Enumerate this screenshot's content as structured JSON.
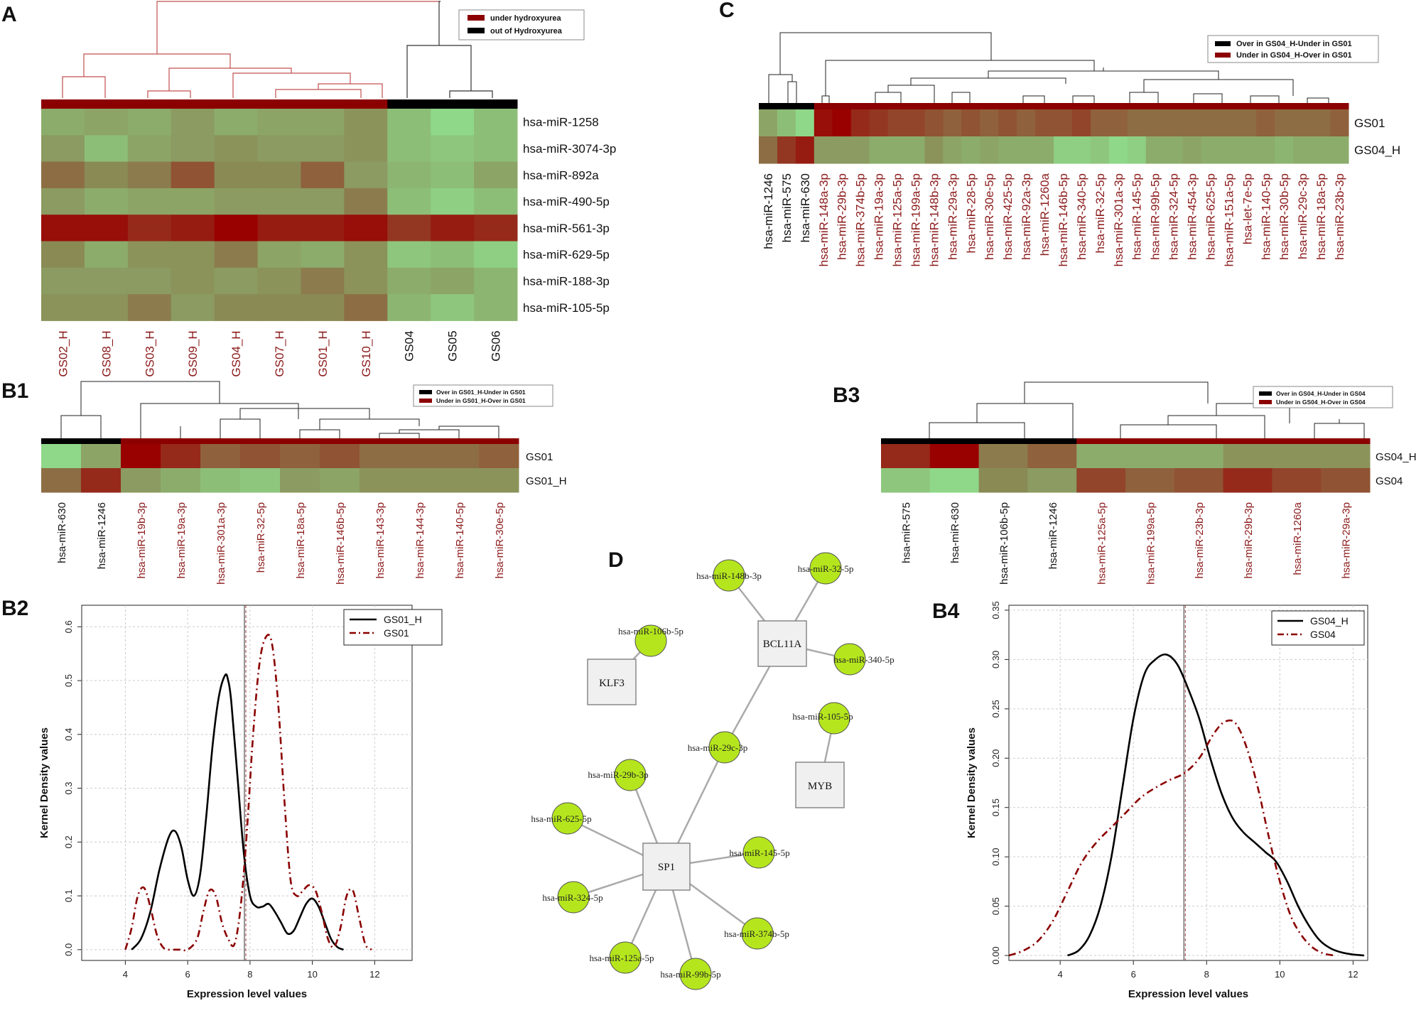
{
  "colors": {
    "dark_red": "#8b0000",
    "black": "#000000",
    "sample_red": "#8b1a1a",
    "node_green": "#b5e61d",
    "heat_low": "#8fe08f",
    "heat_mid": "#8a8a55",
    "heat_high": "#990000"
  },
  "panel_A": {
    "letter": "A",
    "legend": [
      "under hydroxyurea",
      "out of Hydroxyurea"
    ],
    "rows": [
      "hsa-miR-1258",
      "hsa-miR-3074-3p",
      "hsa-miR-892a",
      "hsa-miR-490-5p",
      "hsa-miR-561-3p",
      "hsa-miR-629-5p",
      "hsa-miR-188-3p",
      "hsa-miR-105-5p"
    ],
    "columns": [
      {
        "label": "GS02_H",
        "group": "red"
      },
      {
        "label": "GS08_H",
        "group": "red"
      },
      {
        "label": "GS03_H",
        "group": "red"
      },
      {
        "label": "GS09_H",
        "group": "red"
      },
      {
        "label": "GS04_H",
        "group": "red"
      },
      {
        "label": "GS07_H",
        "group": "red"
      },
      {
        "label": "GS01_H",
        "group": "red"
      },
      {
        "label": "GS10_H",
        "group": "red"
      },
      {
        "label": "GS04",
        "group": "black"
      },
      {
        "label": "GS05",
        "group": "black"
      },
      {
        "label": "GS06",
        "group": "black"
      }
    ],
    "values": [
      [
        0.3,
        0.35,
        0.3,
        0.4,
        0.3,
        0.35,
        0.35,
        0.45,
        0.2,
        0.05,
        0.2
      ],
      [
        0.4,
        0.2,
        0.35,
        0.4,
        0.45,
        0.4,
        0.4,
        0.45,
        0.2,
        0.15,
        0.2
      ],
      [
        0.6,
        0.5,
        0.55,
        0.7,
        0.5,
        0.5,
        0.65,
        0.4,
        0.25,
        0.2,
        0.35
      ],
      [
        0.4,
        0.3,
        0.35,
        0.35,
        0.4,
        0.4,
        0.4,
        0.55,
        0.2,
        0.1,
        0.2
      ],
      [
        0.95,
        0.95,
        0.85,
        0.9,
        1.0,
        0.9,
        0.9,
        0.95,
        0.8,
        0.9,
        0.85
      ],
      [
        0.5,
        0.3,
        0.45,
        0.45,
        0.55,
        0.35,
        0.3,
        0.45,
        0.15,
        0.2,
        0.1
      ],
      [
        0.4,
        0.4,
        0.4,
        0.45,
        0.4,
        0.45,
        0.55,
        0.45,
        0.3,
        0.35,
        0.25
      ],
      [
        0.45,
        0.45,
        0.55,
        0.4,
        0.5,
        0.5,
        0.5,
        0.6,
        0.25,
        0.15,
        0.25
      ]
    ]
  },
  "panel_B1": {
    "letter": "B1",
    "legend": [
      "Over in GS01_H-Under in GS01",
      "Under in GS01_H-Over in GS01"
    ],
    "rows": [
      "GS01",
      "GS01_H"
    ],
    "columns": [
      {
        "label": "hsa-miR-630",
        "group": "black"
      },
      {
        "label": "hsa-miR-1246",
        "group": "black"
      },
      {
        "label": "hsa-miR-19b-3p",
        "group": "red"
      },
      {
        "label": "hsa-miR-19a-3p",
        "group": "red"
      },
      {
        "label": "hsa-miR-301a-3p",
        "group": "red"
      },
      {
        "label": "hsa-miR-32-5p",
        "group": "red"
      },
      {
        "label": "hsa-miR-18a-5p",
        "group": "red"
      },
      {
        "label": "hsa-miR-146b-5p",
        "group": "red"
      },
      {
        "label": "hsa-miR-143-3p",
        "group": "red"
      },
      {
        "label": "hsa-miR-144-3p",
        "group": "red"
      },
      {
        "label": "hsa-miR-140-5p",
        "group": "red"
      },
      {
        "label": "hsa-miR-30e-5p",
        "group": "red"
      }
    ],
    "values": [
      [
        0.05,
        0.35,
        1.0,
        0.85,
        0.65,
        0.7,
        0.65,
        0.7,
        0.6,
        0.6,
        0.6,
        0.65
      ],
      [
        0.6,
        0.85,
        0.4,
        0.3,
        0.2,
        0.15,
        0.4,
        0.35,
        0.45,
        0.45,
        0.45,
        0.45
      ]
    ]
  },
  "panel_C": {
    "letter": "C",
    "legend": [
      "Over in GS04_H-Under in GS01",
      "Under in GS04_H-Over in GS01"
    ],
    "rows": [
      "GS01",
      "GS04_H"
    ],
    "columns": [
      {
        "label": "hsa-miR-1246",
        "group": "black"
      },
      {
        "label": "hsa-miR-575",
        "group": "black"
      },
      {
        "label": "hsa-miR-630",
        "group": "black"
      },
      {
        "label": "hsa-miR-148a-3p",
        "group": "red"
      },
      {
        "label": "hsa-miR-29b-3p",
        "group": "red"
      },
      {
        "label": "hsa-miR-374b-5p",
        "group": "red"
      },
      {
        "label": "hsa-miR-19a-3p",
        "group": "red"
      },
      {
        "label": "hsa-miR-125a-5p",
        "group": "red"
      },
      {
        "label": "hsa-miR-199a-5p",
        "group": "red"
      },
      {
        "label": "hsa-miR-148b-3p",
        "group": "red"
      },
      {
        "label": "hsa-miR-29a-3p",
        "group": "red"
      },
      {
        "label": "hsa-miR-28-5p",
        "group": "red"
      },
      {
        "label": "hsa-miR-30e-5p",
        "group": "red"
      },
      {
        "label": "hsa-miR-425-5p",
        "group": "red"
      },
      {
        "label": "hsa-miR-92a-3p",
        "group": "red"
      },
      {
        "label": "hsa-miR-1260a",
        "group": "red"
      },
      {
        "label": "hsa-miR-146b-5p",
        "group": "red"
      },
      {
        "label": "hsa-miR-340-5p",
        "group": "red"
      },
      {
        "label": "hsa-miR-32-5p",
        "group": "red"
      },
      {
        "label": "hsa-miR-301a-3p",
        "group": "red"
      },
      {
        "label": "hsa-miR-145-5p",
        "group": "red"
      },
      {
        "label": "hsa-miR-99b-5p",
        "group": "red"
      },
      {
        "label": "hsa-miR-324-5p",
        "group": "red"
      },
      {
        "label": "hsa-miR-454-3p",
        "group": "red"
      },
      {
        "label": "hsa-miR-625-5p",
        "group": "red"
      },
      {
        "label": "hsa-miR-151a-5p",
        "group": "red"
      },
      {
        "label": "hsa-let-7e-5p",
        "group": "red"
      },
      {
        "label": "hsa-miR-140-5p",
        "group": "red"
      },
      {
        "label": "hsa-miR-30b-5p",
        "group": "red"
      },
      {
        "label": "hsa-miR-29c-3p",
        "group": "red"
      },
      {
        "label": "hsa-miR-18a-5p",
        "group": "red"
      },
      {
        "label": "hsa-miR-23b-3p",
        "group": "red"
      }
    ],
    "values": [
      [
        0.35,
        0.2,
        0.05,
        0.95,
        1.0,
        0.85,
        0.8,
        0.75,
        0.75,
        0.7,
        0.65,
        0.7,
        0.65,
        0.7,
        0.65,
        0.7,
        0.7,
        0.75,
        0.65,
        0.65,
        0.6,
        0.6,
        0.6,
        0.6,
        0.6,
        0.6,
        0.6,
        0.65,
        0.6,
        0.6,
        0.6,
        0.65
      ],
      [
        0.6,
        0.8,
        0.9,
        0.4,
        0.4,
        0.4,
        0.3,
        0.3,
        0.3,
        0.45,
        0.35,
        0.3,
        0.35,
        0.3,
        0.3,
        0.3,
        0.1,
        0.1,
        0.15,
        0.05,
        0.1,
        0.3,
        0.3,
        0.35,
        0.3,
        0.3,
        0.3,
        0.3,
        0.25,
        0.3,
        0.3,
        0.3
      ]
    ]
  },
  "panel_B3": {
    "letter": "B3",
    "legend": [
      "Over in GS04_H-Under in GS04",
      "Under in GS04_H-Over in GS04"
    ],
    "rows": [
      "GS04_H",
      "GS04"
    ],
    "columns": [
      {
        "label": "hsa-miR-575",
        "group": "black"
      },
      {
        "label": "hsa-miR-630",
        "group": "black"
      },
      {
        "label": "hsa-miR-106b-5p",
        "group": "black"
      },
      {
        "label": "hsa-miR-1246",
        "group": "black"
      },
      {
        "label": "hsa-miR-125a-5p",
        "group": "red"
      },
      {
        "label": "hsa-miR-199a-5p",
        "group": "red"
      },
      {
        "label": "hsa-miR-23b-3p",
        "group": "red"
      },
      {
        "label": "hsa-miR-29b-3p",
        "group": "red"
      },
      {
        "label": "hsa-miR-1260a",
        "group": "red"
      },
      {
        "label": "hsa-miR-29a-3p",
        "group": "red"
      }
    ],
    "values": [
      [
        0.85,
        1.0,
        0.55,
        0.65,
        0.3,
        0.3,
        0.3,
        0.45,
        0.45,
        0.45
      ],
      [
        0.15,
        0.05,
        0.5,
        0.4,
        0.75,
        0.65,
        0.7,
        0.85,
        0.75,
        0.7
      ]
    ]
  },
  "panel_B2": {
    "letter": "B2",
    "xlabel": "Expression level values",
    "ylabel": "Kernel Density values",
    "xlim": [
      2.6,
      13.2
    ],
    "ylim": [
      -0.02,
      0.64
    ],
    "xticks": [
      "4",
      "6",
      "8",
      "10",
      "12"
    ],
    "xtick_values": [
      4,
      6,
      8,
      10,
      12
    ],
    "yticks": [
      "0.0",
      "0.1",
      "0.2",
      "0.3",
      "0.4",
      "0.5",
      "0.6"
    ],
    "ytick_values": [
      0.0,
      0.1,
      0.2,
      0.3,
      0.4,
      0.5,
      0.6
    ],
    "vline": 7.82,
    "series": [
      {
        "name": "GS01_H",
        "style": "solid",
        "color": "#000000",
        "x": [
          4.2,
          4.5,
          4.8,
          5.1,
          5.4,
          5.6,
          5.8,
          6.0,
          6.2,
          6.4,
          6.6,
          6.8,
          7.0,
          7.2,
          7.3,
          7.4,
          7.6,
          7.8,
          8.0,
          8.2,
          8.4,
          8.6,
          8.8,
          9.0,
          9.2,
          9.4,
          9.6,
          9.8,
          10.0,
          10.2,
          10.4,
          10.6,
          10.8,
          11.0
        ],
        "y": [
          0.0,
          0.02,
          0.07,
          0.15,
          0.21,
          0.22,
          0.19,
          0.13,
          0.1,
          0.14,
          0.25,
          0.38,
          0.47,
          0.51,
          0.5,
          0.46,
          0.32,
          0.18,
          0.1,
          0.08,
          0.08,
          0.085,
          0.07,
          0.05,
          0.03,
          0.035,
          0.06,
          0.085,
          0.095,
          0.08,
          0.05,
          0.02,
          0.005,
          0.0
        ]
      },
      {
        "name": "GS01",
        "style": "dashdot",
        "color": "#8b0000",
        "x": [
          4.0,
          4.2,
          4.4,
          4.6,
          4.8,
          5.0,
          5.2,
          5.4,
          5.6,
          5.8,
          6.0,
          6.3,
          6.5,
          6.7,
          6.9,
          7.1,
          7.3,
          7.5,
          7.7,
          7.9,
          8.1,
          8.3,
          8.5,
          8.7,
          8.9,
          9.1,
          9.3,
          9.5,
          9.7,
          9.9,
          10.1,
          10.3,
          10.5,
          10.7,
          10.9,
          11.1,
          11.3,
          11.5,
          11.7,
          11.9
        ],
        "y": [
          0.0,
          0.04,
          0.1,
          0.115,
          0.08,
          0.03,
          0.005,
          0.0,
          0.0,
          0.0,
          0.0,
          0.02,
          0.07,
          0.11,
          0.1,
          0.05,
          0.02,
          0.01,
          0.08,
          0.22,
          0.4,
          0.53,
          0.58,
          0.57,
          0.46,
          0.28,
          0.13,
          0.1,
          0.11,
          0.12,
          0.11,
          0.07,
          0.02,
          0.005,
          0.04,
          0.1,
          0.11,
          0.06,
          0.01,
          0.0
        ]
      }
    ]
  },
  "panel_B4": {
    "letter": "B4",
    "xlabel": "Expression level values",
    "ylabel": "Kernel Density values",
    "xlim": [
      2.6,
      12.4
    ],
    "ylim": [
      -0.005,
      0.355
    ],
    "xticks": [
      "4",
      "6",
      "8",
      "10",
      "12"
    ],
    "xtick_values": [
      4,
      6,
      8,
      10,
      12
    ],
    "yticks": [
      "0.00",
      "0.05",
      "0.10",
      "0.15",
      "0.20",
      "0.25",
      "0.30",
      "0.35"
    ],
    "ytick_values": [
      0.0,
      0.05,
      0.1,
      0.15,
      0.2,
      0.25,
      0.3,
      0.35
    ],
    "vline": 7.38,
    "series": [
      {
        "name": "GS04_H",
        "style": "solid",
        "color": "#000000",
        "x": [
          4.2,
          4.5,
          4.8,
          5.1,
          5.4,
          5.7,
          6.0,
          6.3,
          6.6,
          6.9,
          7.2,
          7.5,
          7.8,
          8.1,
          8.4,
          8.7,
          9.0,
          9.3,
          9.6,
          9.9,
          10.2,
          10.5,
          10.8,
          11.1,
          11.4,
          11.7,
          12.0,
          12.3
        ],
        "y": [
          0.0,
          0.005,
          0.02,
          0.05,
          0.1,
          0.17,
          0.24,
          0.285,
          0.3,
          0.305,
          0.295,
          0.27,
          0.24,
          0.2,
          0.165,
          0.14,
          0.125,
          0.115,
          0.105,
          0.095,
          0.075,
          0.05,
          0.03,
          0.015,
          0.007,
          0.003,
          0.001,
          0.0
        ]
      },
      {
        "name": "GS04",
        "style": "dashdot",
        "color": "#8b0000",
        "x": [
          2.6,
          3.0,
          3.4,
          3.8,
          4.2,
          4.6,
          5.0,
          5.4,
          5.8,
          6.2,
          6.6,
          7.0,
          7.4,
          7.8,
          8.2,
          8.5,
          8.8,
          9.1,
          9.4,
          9.7,
          10.0,
          10.3,
          10.6,
          10.9,
          11.2,
          11.5
        ],
        "y": [
          0.0,
          0.005,
          0.015,
          0.035,
          0.065,
          0.095,
          0.115,
          0.13,
          0.145,
          0.16,
          0.17,
          0.178,
          0.185,
          0.2,
          0.225,
          0.237,
          0.235,
          0.21,
          0.17,
          0.12,
          0.075,
          0.04,
          0.02,
          0.008,
          0.002,
          0.0
        ]
      }
    ]
  },
  "panel_D": {
    "letter": "D",
    "genes": [
      "BCL11A",
      "KLF3",
      "MYB",
      "SP1"
    ],
    "nodes": [
      "hsa-miR-148b-3p",
      "hsa-miR-32-5p",
      "hsa-miR-106b-5p",
      "hsa-miR-340-5p",
      "hsa-miR-105-5p",
      "hsa-miR-29c-3p",
      "hsa-miR-29b-3p",
      "hsa-miR-625-5p",
      "hsa-miR-145-5p",
      "hsa-miR-324-5p",
      "hsa-miR-374b-5p",
      "hsa-miR-125a-5p",
      "hsa-miR-99b-5p"
    ]
  }
}
